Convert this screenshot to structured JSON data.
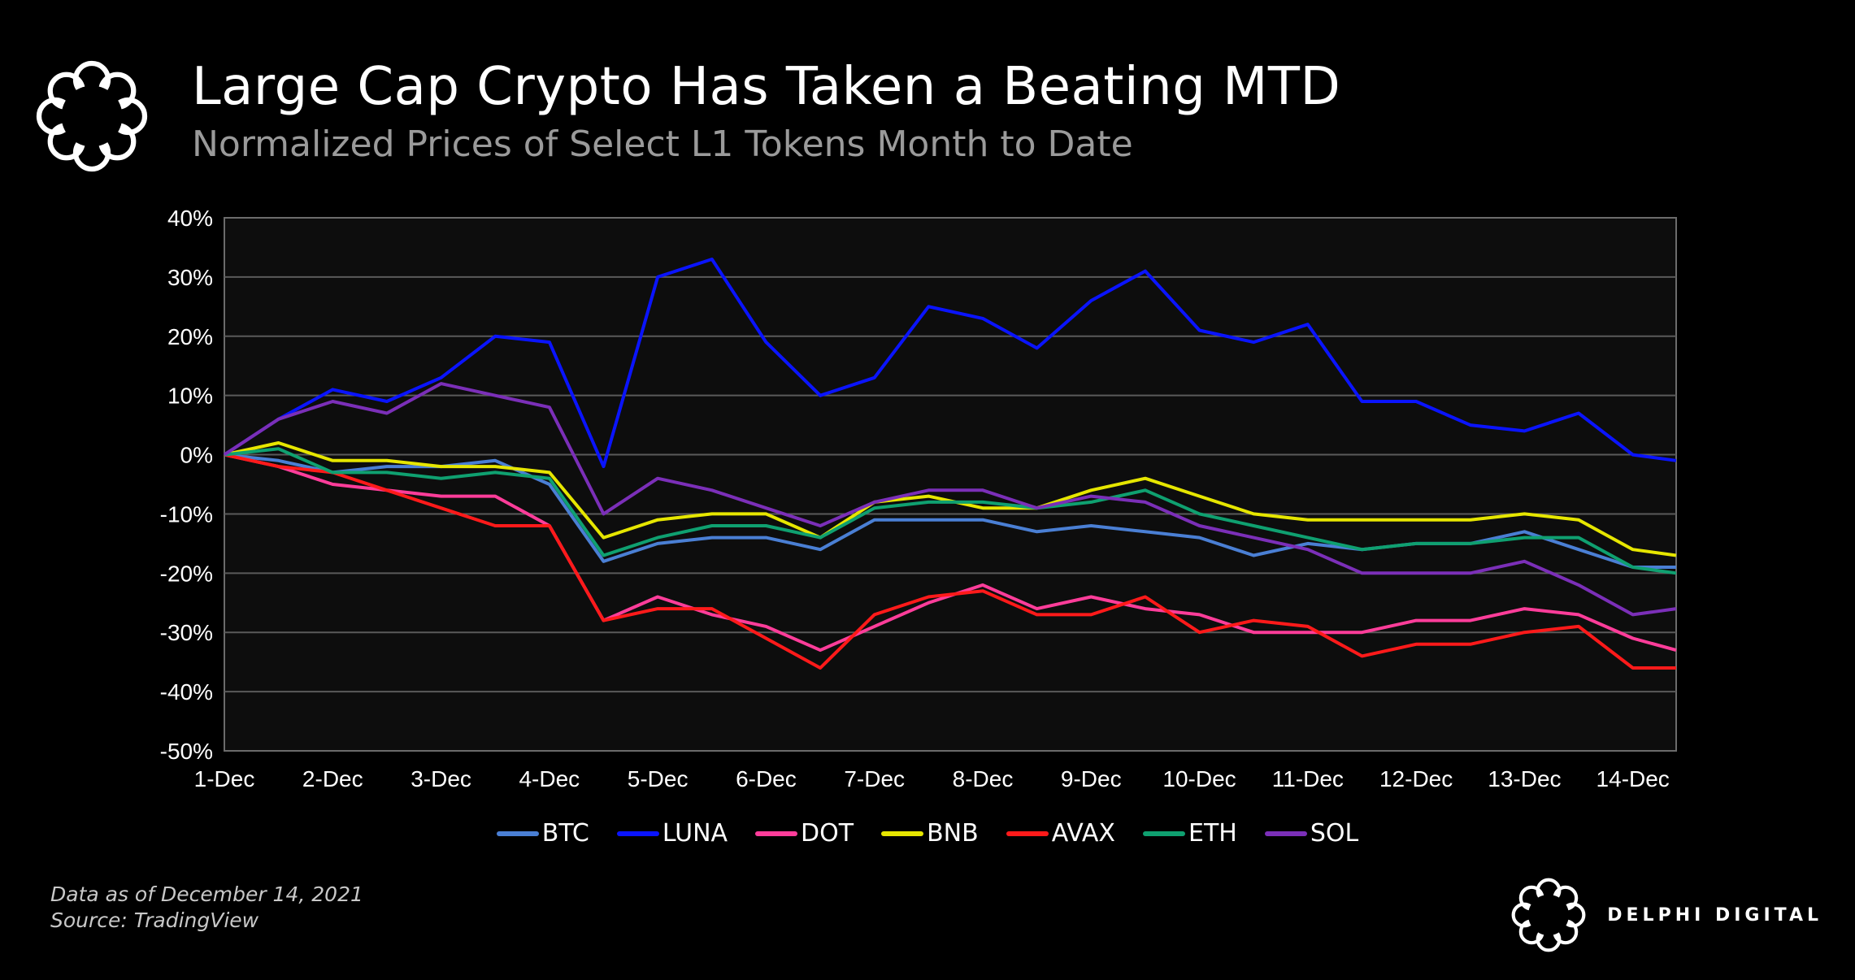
{
  "header": {
    "title": "Large Cap Crypto Has Taken a Beating MTD",
    "subtitle": "Normalized Prices of Select L1 Tokens Month to Date"
  },
  "footer": {
    "note_line1": "Data as of December 14, 2021",
    "note_line2": "Source:  TradingView",
    "brand": "DELPHI DIGITAL"
  },
  "icons": {
    "logo": "delphi-knot-logo-icon"
  },
  "chart_data": {
    "type": "line",
    "title": "Large Cap Crypto Has Taken a Beating MTD",
    "subtitle": "Normalized Prices of Select L1 Tokens Month to Date",
    "xlabel": "",
    "ylabel": "",
    "ylim": [
      -50,
      40
    ],
    "yticks": [
      "40%",
      "30%",
      "20%",
      "10%",
      "0%",
      "-10%",
      "-20%",
      "-30%",
      "-40%",
      "-50%"
    ],
    "ytick_values": [
      40,
      30,
      20,
      10,
      0,
      -10,
      -20,
      -30,
      -40,
      -50
    ],
    "xticks": [
      "1-Dec",
      "2-Dec",
      "3-Dec",
      "4-Dec",
      "5-Dec",
      "6-Dec",
      "7-Dec",
      "8-Dec",
      "9-Dec",
      "10-Dec",
      "11-Dec",
      "12-Dec",
      "13-Dec",
      "14-Dec"
    ],
    "x": [
      "1-Dec",
      "1.5",
      "2-Dec",
      "2.5",
      "3-Dec",
      "3.5",
      "4-Dec",
      "4.5",
      "5-Dec",
      "5.5",
      "6-Dec",
      "6.5",
      "7-Dec",
      "7.5",
      "8-Dec",
      "8.5",
      "9-Dec",
      "9.5",
      "10-Dec",
      "10.5",
      "11-Dec",
      "11.5",
      "12-Dec",
      "12.5",
      "13-Dec",
      "13.5",
      "14-Dec",
      "14.4"
    ],
    "x_numeric": [
      1,
      1.5,
      2,
      2.5,
      3,
      3.5,
      4,
      4.5,
      5,
      5.5,
      6,
      6.5,
      7,
      7.5,
      8,
      8.5,
      9,
      9.5,
      10,
      10.5,
      11,
      11.5,
      12,
      12.5,
      13,
      13.5,
      14,
      14.4
    ],
    "grid": true,
    "legend_position": "bottom-center",
    "background": "#0d0d0d",
    "series": [
      {
        "name": "BTC",
        "color": "#4a7fd4",
        "values": [
          0,
          -1,
          -3,
          -2,
          -2,
          -1,
          -5,
          -18,
          -15,
          -14,
          -14,
          -16,
          -11,
          -11,
          -11,
          -13,
          -12,
          -13,
          -14,
          -17,
          -15,
          -16,
          -15,
          -15,
          -13,
          -16,
          -19,
          -19
        ]
      },
      {
        "name": "LUNA",
        "color": "#0a14ff",
        "values": [
          0,
          6,
          11,
          9,
          13,
          20,
          19,
          -2,
          30,
          33,
          19,
          10,
          13,
          25,
          23,
          18,
          26,
          31,
          21,
          19,
          22,
          9,
          9,
          5,
          4,
          7,
          0,
          -1
        ]
      },
      {
        "name": "DOT",
        "color": "#ff3d9a",
        "values": [
          0,
          -2,
          -5,
          -6,
          -7,
          -7,
          -12,
          -28,
          -24,
          -27,
          -29,
          -33,
          -29,
          -25,
          -22,
          -26,
          -24,
          -26,
          -27,
          -30,
          -30,
          -30,
          -28,
          -28,
          -26,
          -27,
          -31,
          -33
        ]
      },
      {
        "name": "BNB",
        "color": "#e6e600",
        "values": [
          0,
          2,
          -1,
          -1,
          -2,
          -2,
          -3,
          -14,
          -11,
          -10,
          -10,
          -14,
          -8,
          -7,
          -9,
          -9,
          -6,
          -4,
          -7,
          -10,
          -11,
          -11,
          -11,
          -11,
          -10,
          -11,
          -16,
          -17
        ]
      },
      {
        "name": "AVAX",
        "color": "#ff1a1a",
        "values": [
          0,
          -2,
          -3,
          -6,
          -9,
          -12,
          -12,
          -28,
          -26,
          -26,
          -31,
          -36,
          -27,
          -24,
          -23,
          -27,
          -27,
          -24,
          -30,
          -28,
          -29,
          -34,
          -32,
          -32,
          -30,
          -29,
          -36,
          -36
        ]
      },
      {
        "name": "ETH",
        "color": "#0fa070",
        "values": [
          0,
          1,
          -3,
          -3,
          -4,
          -3,
          -4,
          -17,
          -14,
          -12,
          -12,
          -14,
          -9,
          -8,
          -8,
          -9,
          -8,
          -6,
          -10,
          -12,
          -14,
          -16,
          -15,
          -15,
          -14,
          -14,
          -19,
          -20
        ]
      },
      {
        "name": "SOL",
        "color": "#7b2fb8",
        "values": [
          0,
          6,
          9,
          7,
          12,
          10,
          8,
          -10,
          -4,
          -6,
          -9,
          -12,
          -8,
          -6,
          -6,
          -9,
          -7,
          -8,
          -12,
          -14,
          -16,
          -20,
          -20,
          -20,
          -18,
          -22,
          -27,
          -26
        ]
      }
    ]
  }
}
